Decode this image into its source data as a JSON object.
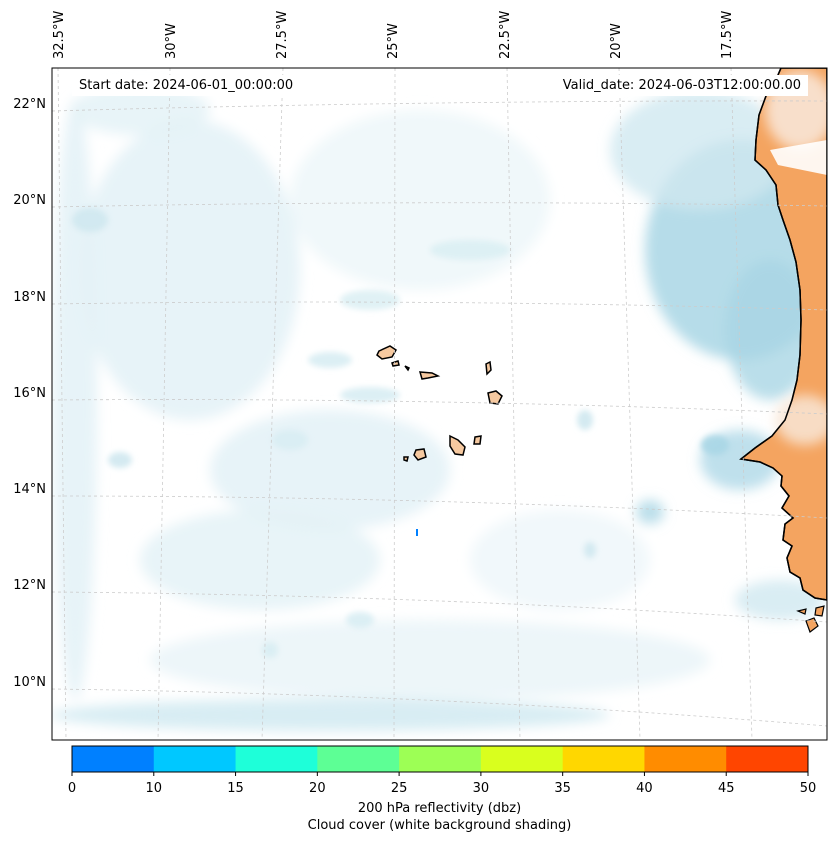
{
  "map": {
    "start_date_label": "Start date: 2024-06-01_00:00:00",
    "valid_date_label": "Valid_date: 2024-06-03T12:00:00.00",
    "longitude_labels": [
      "32.5°W",
      "30°W",
      "27.5°W",
      "25°W",
      "22.5°W",
      "20°W",
      "17.5°W"
    ],
    "latitude_labels": [
      "22°N",
      "20°N",
      "18°N",
      "16°N",
      "14°N",
      "12°N",
      "10°N"
    ],
    "colors": {
      "land": "#f4a460",
      "island": "#f6c9a0",
      "cloud_light": "#e4f2f7",
      "cloud_dark": "#a9d6e5",
      "gridline": "#cccccc",
      "coastline": "#000000"
    }
  },
  "colorbar": {
    "bounds": [
      0,
      10,
      15,
      20,
      25,
      30,
      35,
      40,
      45,
      50
    ],
    "tick_labels": [
      "0",
      "10",
      "15",
      "20",
      "25",
      "30",
      "35",
      "40",
      "45",
      "50"
    ],
    "colors": [
      "#0080ff",
      "#00c8ff",
      "#1effd9",
      "#5dff95",
      "#9dff55",
      "#d9ff1e",
      "#ffd700",
      "#ff8c00",
      "#ff4500"
    ],
    "label_line1": "200 hPa reflectivity (dbz)",
    "label_line2": "Cloud cover (white background shading)"
  }
}
